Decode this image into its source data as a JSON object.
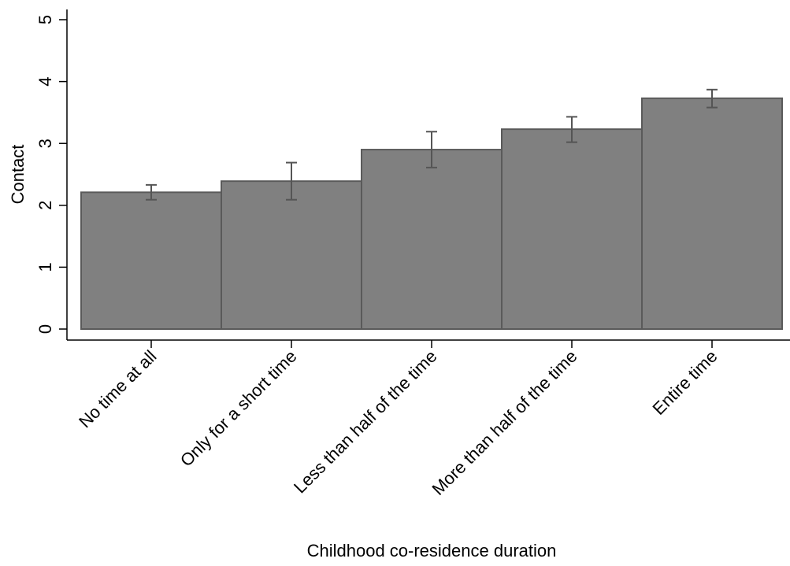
{
  "chart_data": {
    "type": "bar",
    "title": "",
    "xlabel": "Childhood co-residence duration",
    "ylabel": "Contact",
    "ylim": [
      0,
      5
    ],
    "yticks": [
      0,
      1,
      2,
      3,
      4,
      5
    ],
    "grid": false,
    "categories": [
      "No time at all",
      "Only for a short time",
      "Less than half of the time",
      "More than half of the time",
      "Entire time"
    ],
    "values": [
      2.21,
      2.39,
      2.9,
      3.23,
      3.73
    ],
    "error_low": [
      2.09,
      2.09,
      2.61,
      3.02,
      3.58
    ],
    "error_high": [
      2.33,
      2.69,
      3.19,
      3.43,
      3.87
    ],
    "colors": {
      "bar_fill": "#808080",
      "bar_stroke": "#5a5a5a",
      "error_bar": "#555555",
      "axis": "#000000"
    }
  }
}
